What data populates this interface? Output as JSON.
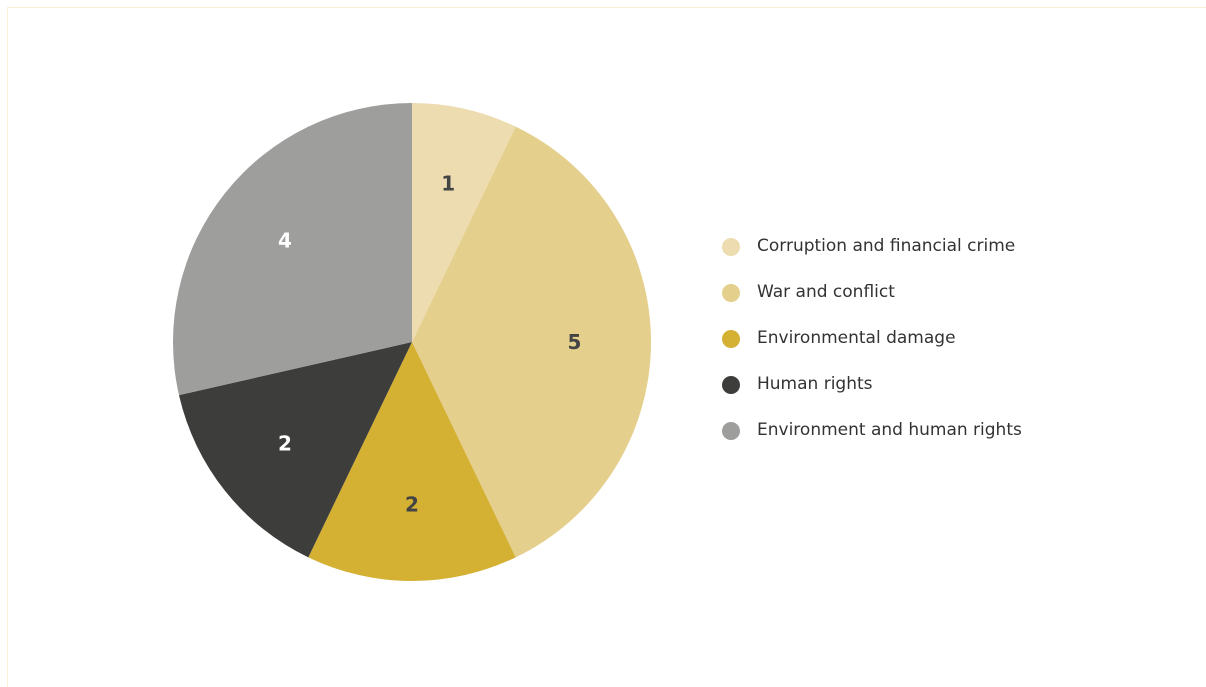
{
  "chart_data": {
    "type": "pie",
    "categories": [
      "Corruption and financial crime",
      "War and conflict",
      "Environmental damage",
      "Human rights",
      "Environment and human rights"
    ],
    "values": [
      1,
      5,
      2,
      2,
      4
    ],
    "colors": [
      "#eddcb0",
      "#e5cf8c",
      "#d4b033",
      "#3d3d3b",
      "#9e9e9c"
    ],
    "label_colors": [
      "#444444",
      "#444444",
      "#444444",
      "#ffffff",
      "#ffffff"
    ],
    "legend_position": "right",
    "start_angle": "12 o'clock",
    "direction": "clockwise"
  }
}
